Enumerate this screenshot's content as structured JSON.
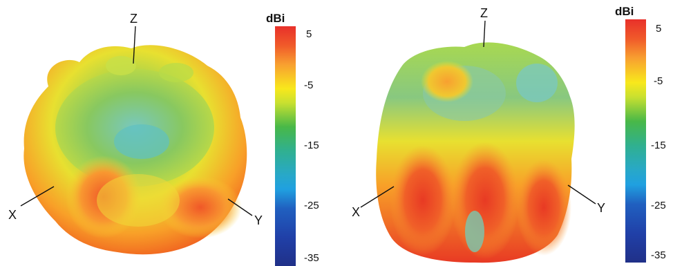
{
  "colorbar": {
    "unit": "dBi",
    "ticks": [
      "5",
      "-5",
      "-15",
      "-25",
      "-35"
    ],
    "colors": [
      "#e8302a",
      "#f8e81c",
      "#48b848",
      "#28a8c8",
      "#2040a8"
    ]
  },
  "panels": [
    {
      "axes": {
        "z": "Z",
        "x": "X",
        "y": "Y"
      }
    },
    {
      "axes": {
        "z": "Z",
        "x": "X",
        "y": "Y"
      }
    }
  ]
}
